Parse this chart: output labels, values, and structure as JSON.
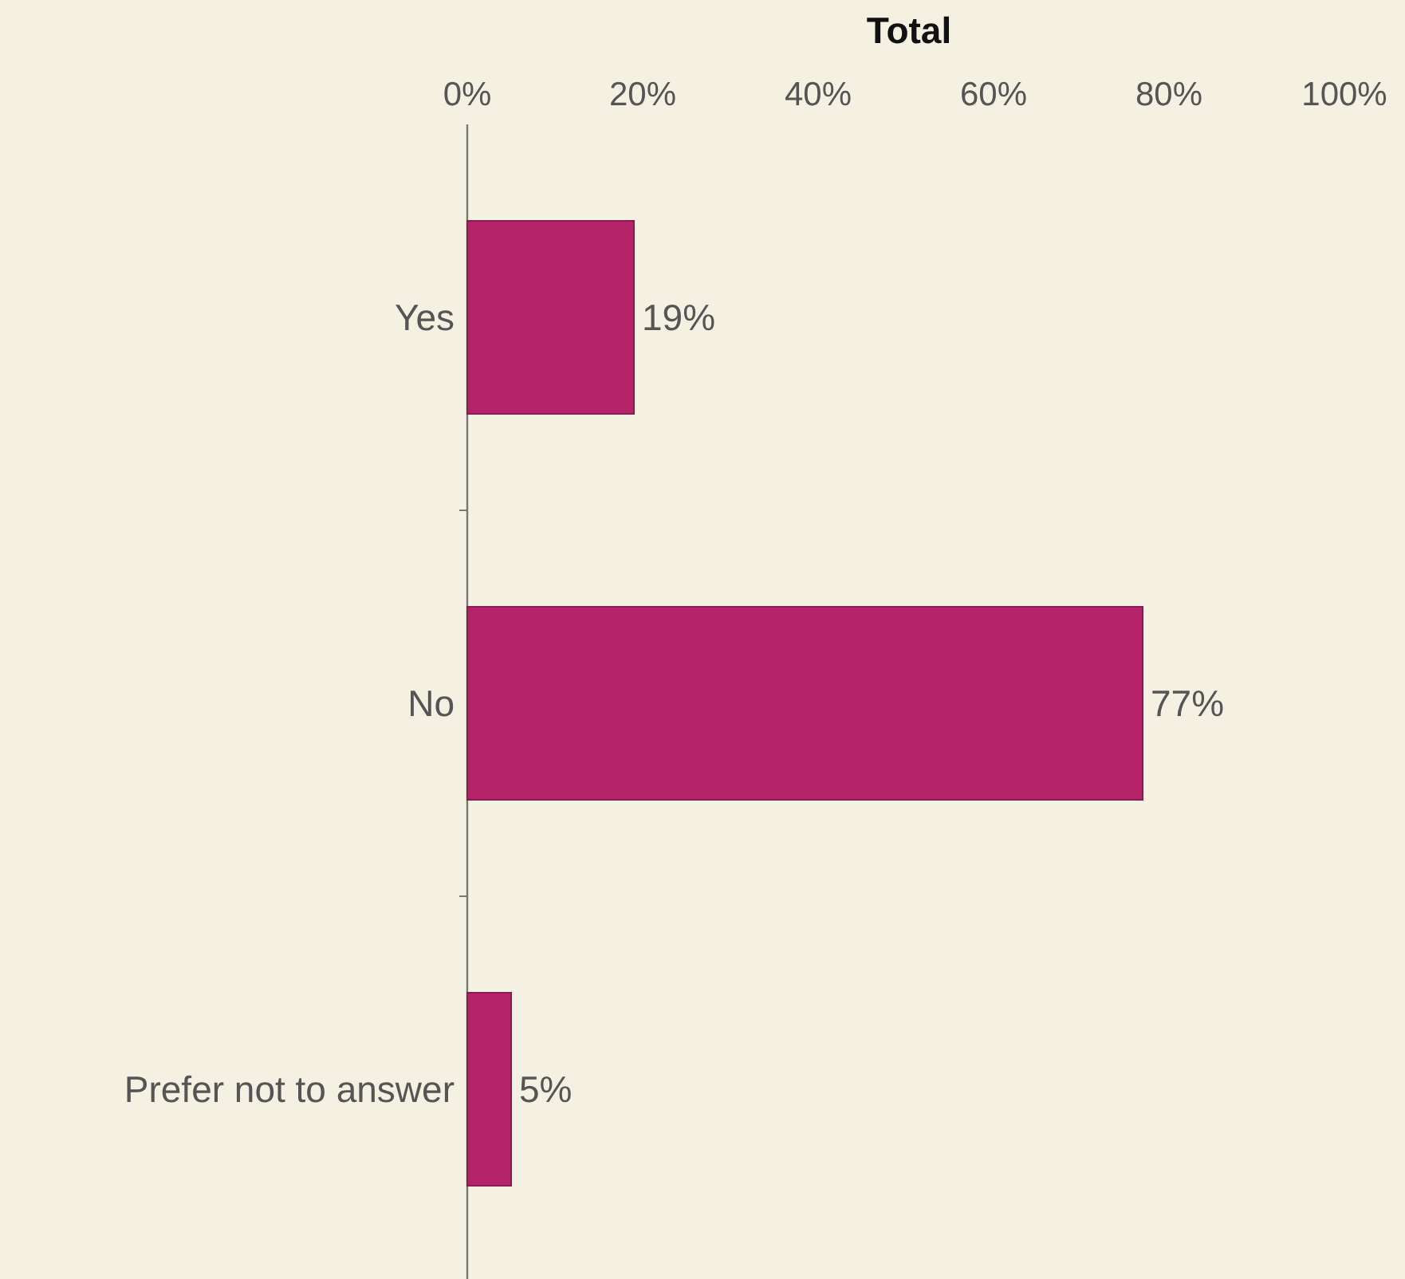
{
  "chart_data": {
    "type": "bar",
    "orientation": "horizontal",
    "title": "Total",
    "categories": [
      "Yes",
      "No",
      "Prefer not to answer"
    ],
    "values": [
      19,
      77,
      5
    ],
    "value_labels": [
      "19%",
      "77%",
      "5%"
    ],
    "color": "#b5236b",
    "xlim": [
      0,
      100
    ],
    "xticks": [
      {
        "value": 0,
        "label": "0%"
      },
      {
        "value": 20,
        "label": "20%"
      },
      {
        "value": 40,
        "label": "40%"
      },
      {
        "value": 60,
        "label": "60%"
      },
      {
        "value": 80,
        "label": "80%"
      },
      {
        "value": 100,
        "label": "100%"
      }
    ],
    "grid": false
  }
}
